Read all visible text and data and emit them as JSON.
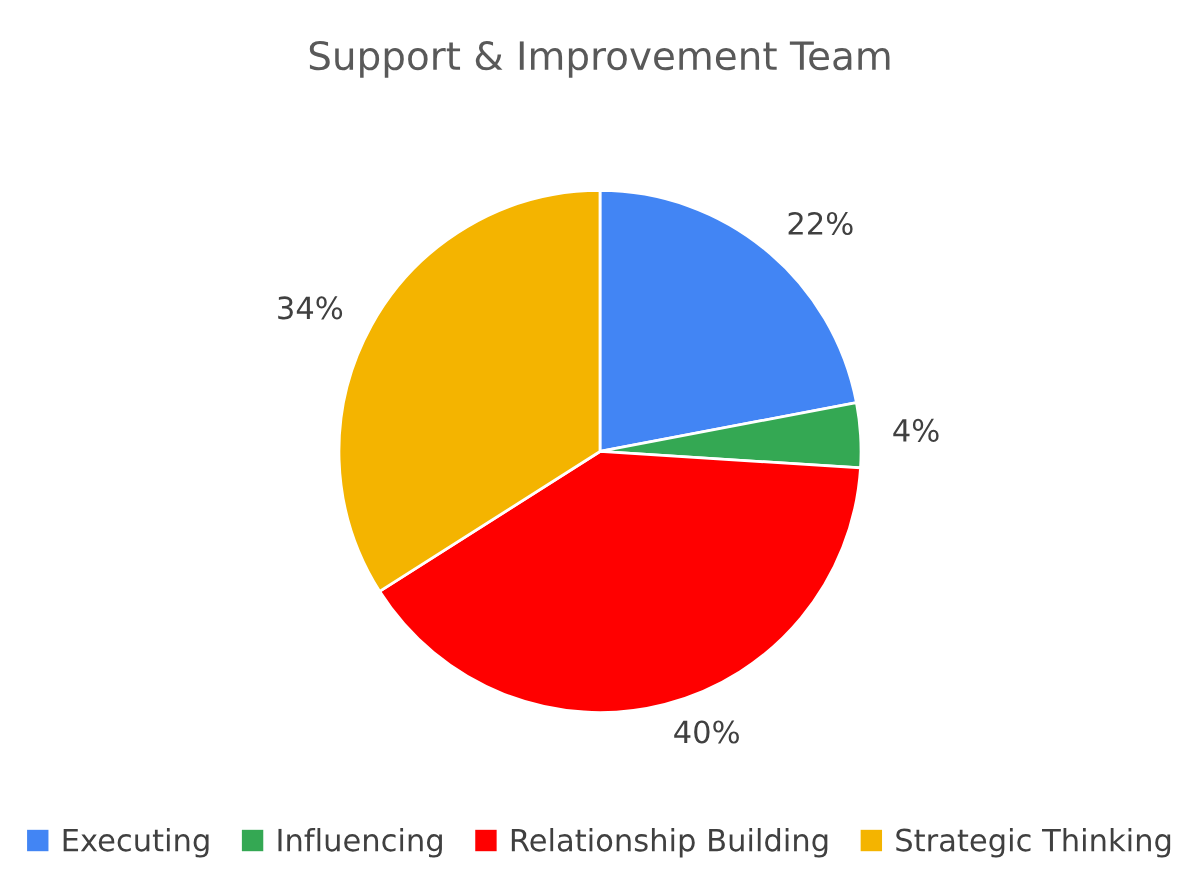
{
  "chart_data": {
    "type": "pie",
    "title": "Support & Improvement Team",
    "categories": [
      "Executing",
      "Influencing",
      "Relationship Building",
      "Strategic Thinking"
    ],
    "values": [
      22,
      4,
      40,
      34
    ],
    "value_labels": [
      "22%",
      "4%",
      "40%",
      "34%"
    ],
    "colors": [
      "#4285f4",
      "#34a853",
      "#ff0000",
      "#f4b400"
    ],
    "legend": "bottom"
  }
}
